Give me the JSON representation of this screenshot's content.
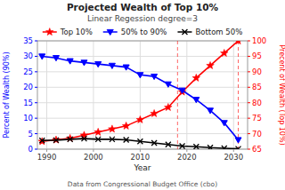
{
  "chart_data": {
    "type": "line",
    "title": "Projected Wealth of Top 10%",
    "subtitle": "Linear Regession degree=3",
    "xlabel": "Year",
    "ylabel": "Percent of Wealth (90%)",
    "y2label": "Precent of Wealth (Top 10%)",
    "x": [
      1989,
      1992,
      1995,
      1998,
      2001,
      2004,
      2007,
      2010,
      2013,
      2016,
      2019,
      2022,
      2025,
      2028,
      2031
    ],
    "series": [
      {
        "name": "Top 10%",
        "color": "red",
        "marker": "star",
        "axis": "y2",
        "values": [
          67.5,
          68.0,
          68.5,
          69.5,
          70.5,
          71.5,
          72.5,
          74.5,
          76.5,
          78.5,
          83.5,
          88.0,
          92.0,
          96.0,
          100.0
        ]
      },
      {
        "name": "50% to 90%",
        "color": "blue",
        "marker": "triangle-down",
        "axis": "y",
        "values": [
          30.0,
          29.5,
          28.5,
          28.0,
          27.5,
          27.0,
          26.5,
          24.0,
          23.5,
          21.0,
          19.0,
          16.0,
          12.5,
          8.5,
          3.0
        ]
      },
      {
        "name": "Bottom 50%",
        "color": "black",
        "marker": "x",
        "axis": "y",
        "values": [
          2.8,
          2.9,
          3.2,
          3.4,
          3.2,
          3.2,
          3.0,
          2.5,
          2.0,
          1.5,
          1.0,
          0.8,
          0.5,
          0.3,
          0.1
        ]
      }
    ],
    "annotations": [
      {
        "type": "vline",
        "x": 2018,
        "color": "red",
        "line_style": "dashed"
      },
      {
        "type": "vline",
        "x": 2031,
        "color": "red",
        "line_style": "dashed"
      },
      {
        "type": "text",
        "text": "Data from Congressional Budget Office (cbo)"
      }
    ],
    "xlim": [
      1988,
      2033
    ],
    "xticks": [
      1990,
      2000,
      2010,
      2020,
      2030
    ],
    "ylim": [
      0,
      35
    ],
    "yticks": [
      0,
      5,
      10,
      15,
      20,
      25,
      30,
      35
    ],
    "y2lim": [
      65,
      100
    ],
    "y2ticks": [
      65,
      70,
      75,
      80,
      85,
      90,
      95,
      100
    ],
    "grid": true,
    "legend": "top"
  }
}
